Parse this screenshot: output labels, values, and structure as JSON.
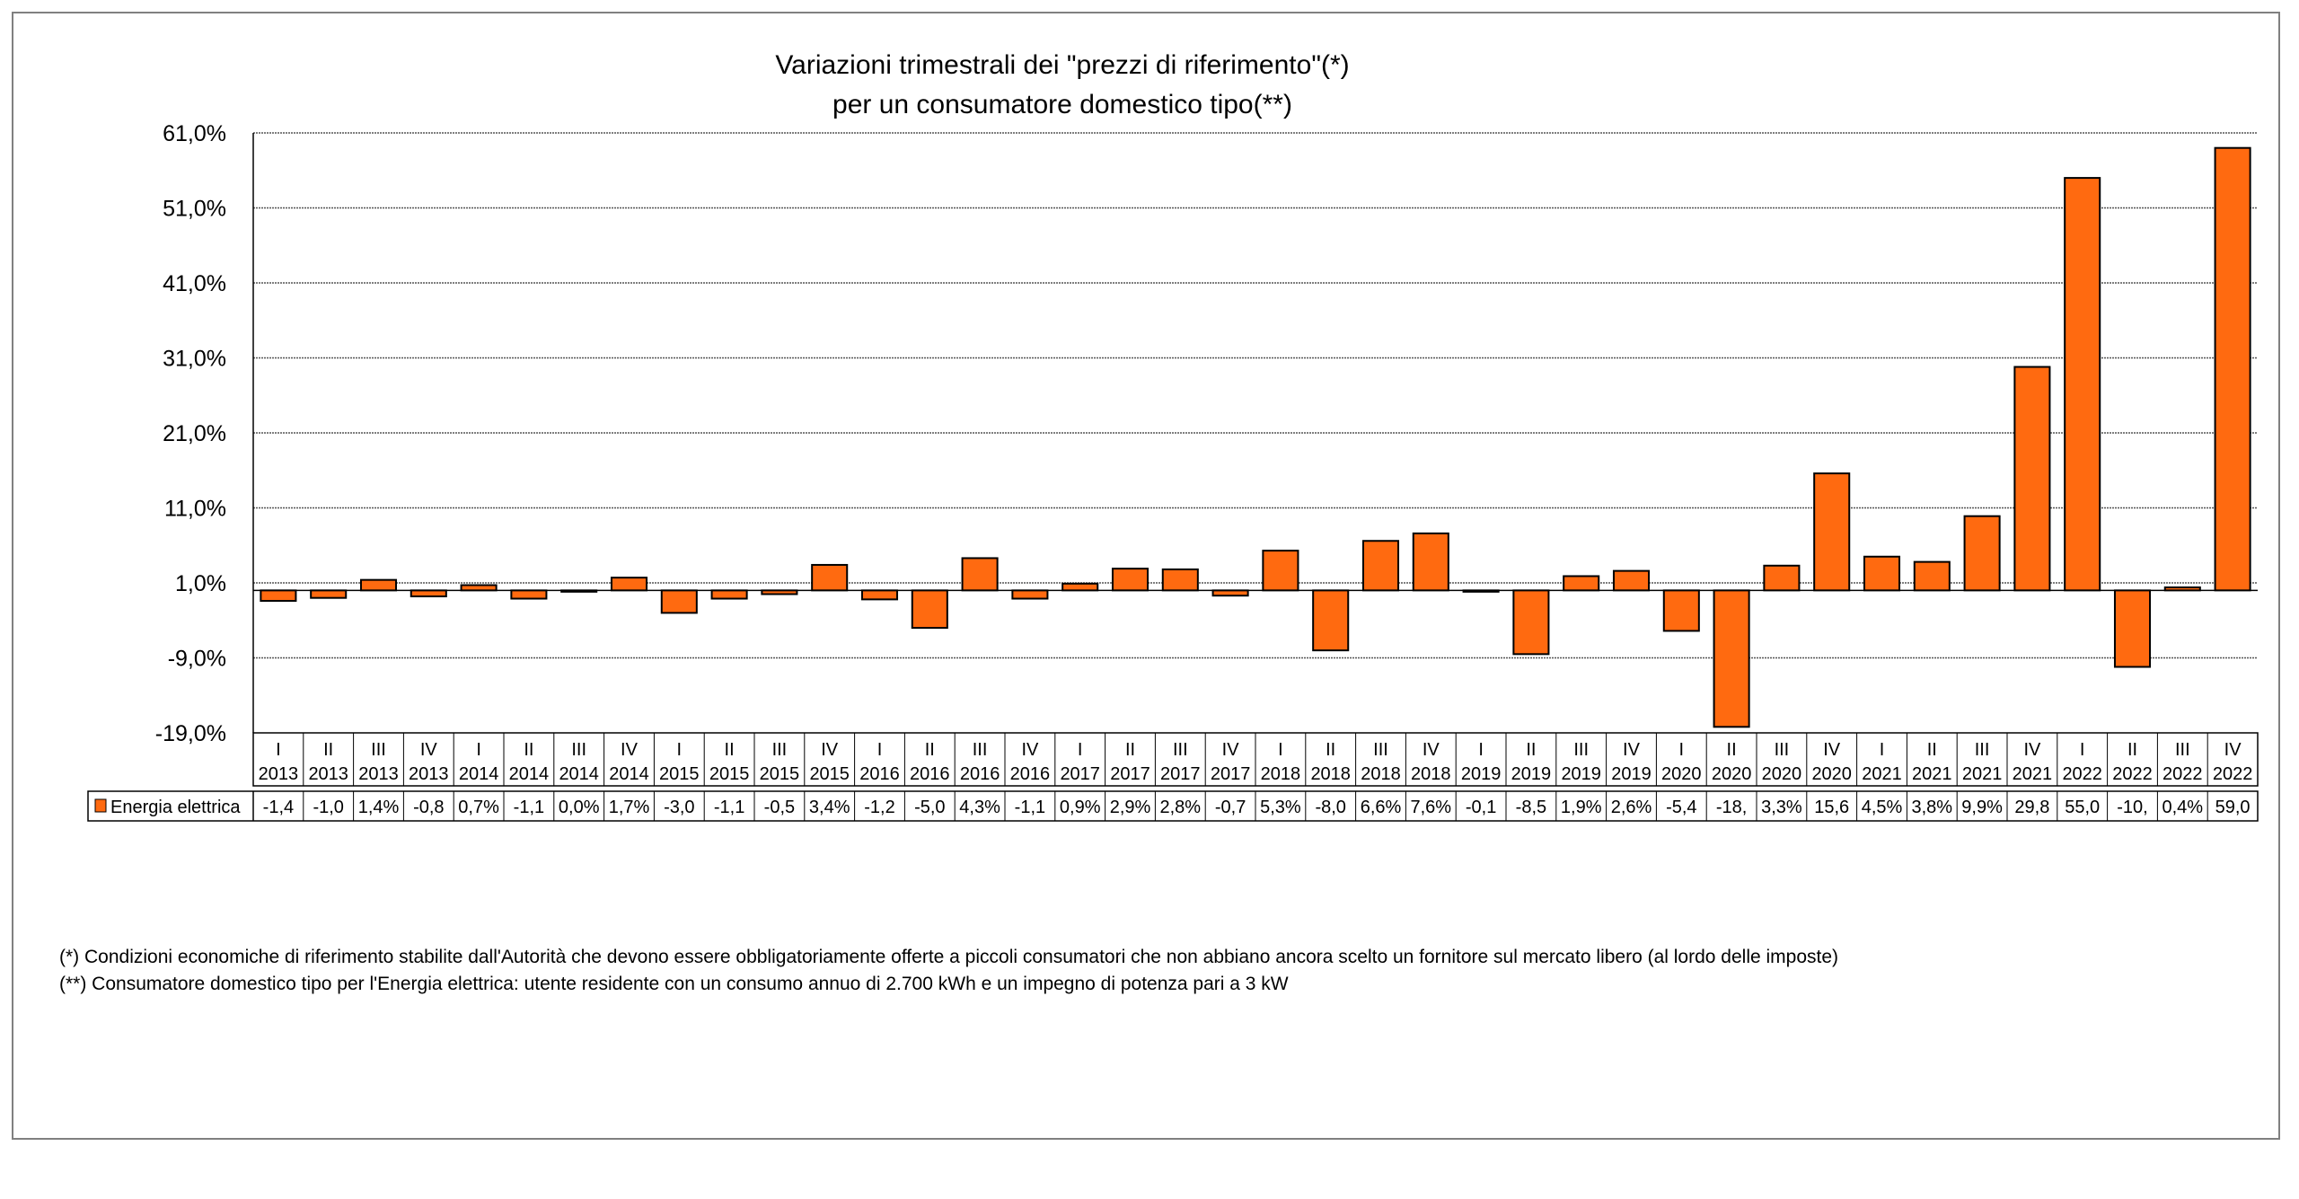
{
  "chart_data": {
    "type": "bar",
    "title_line1": "Variazioni trimestrali dei \"prezzi di riferimento\"(*)",
    "title_line2": "per un consumatore domestico tipo(**)",
    "xlabel": "",
    "ylabel": "",
    "ylim": [
      -19,
      61
    ],
    "y_ticks": [
      61,
      51,
      41,
      31,
      21,
      11,
      1,
      -9,
      -19
    ],
    "y_tick_labels": [
      "61,0%",
      "51,0%",
      "41,0%",
      "31,0%",
      "21,0%",
      "11,0%",
      "1,0%",
      "-9,0%",
      "-19,0%"
    ],
    "grid": true,
    "quarters": [
      "I",
      "II",
      "III",
      "IV",
      "I",
      "II",
      "III",
      "IV",
      "I",
      "II",
      "III",
      "IV",
      "I",
      "II",
      "III",
      "IV",
      "I",
      "II",
      "III",
      "IV",
      "I",
      "II",
      "III",
      "IV",
      "I",
      "II",
      "III",
      "IV",
      "I",
      "II",
      "III",
      "IV",
      "I",
      "II",
      "III",
      "IV",
      "I",
      "II",
      "III",
      "IV"
    ],
    "categories": [
      "I 2013",
      "II 2013",
      "III 2013",
      "IV 2013",
      "I 2014",
      "II 2014",
      "III 2014",
      "IV 2014",
      "I 2015",
      "II 2015",
      "III 2015",
      "IV 2015",
      "I 2016",
      "II 2016",
      "III 2016",
      "IV 2016",
      "I 2017",
      "II 2017",
      "III 2017",
      "IV 2017",
      "I 2018",
      "II 2018",
      "III 2018",
      "IV 2018",
      "I 2019",
      "II 2019",
      "III 2019",
      "IV 2019",
      "I 2020",
      "II 2020",
      "III 2020",
      "IV 2020",
      "I 2021",
      "II 2021",
      "III 2021",
      "IV 2021",
      "I 2022",
      "II 2022",
      "III 2022",
      "IV 2022"
    ],
    "years": [
      "2013",
      "2013",
      "2013",
      "2013",
      "2014",
      "2014",
      "2014",
      "2014",
      "2015",
      "2015",
      "2015",
      "2015",
      "2016",
      "2016",
      "2016",
      "2016",
      "2017",
      "2017",
      "2017",
      "2017",
      "2018",
      "2018",
      "2018",
      "2018",
      "2019",
      "2019",
      "2019",
      "2019",
      "2020",
      "2020",
      "2020",
      "2020",
      "2021",
      "2021",
      "2021",
      "2021",
      "2022",
      "2022",
      "2022",
      "2022"
    ],
    "series": [
      {
        "name": "Energia elettrica",
        "color": "#FF6A10",
        "values": [
          -1.4,
          -1.0,
          1.4,
          -0.8,
          0.7,
          -1.1,
          0.0,
          1.7,
          -3.0,
          -1.1,
          -0.5,
          3.4,
          -1.2,
          -5.0,
          4.3,
          -1.1,
          0.9,
          2.9,
          2.8,
          -0.7,
          5.3,
          -8.0,
          6.6,
          7.6,
          -0.1,
          -8.5,
          1.9,
          2.6,
          -5.4,
          -18.2,
          3.3,
          15.6,
          4.5,
          3.8,
          9.9,
          29.8,
          55.0,
          -10.2,
          0.4,
          59.0
        ],
        "value_labels": [
          "-1,4",
          "-1,0",
          "1,4%",
          "-0,8",
          "0,7%",
          "-1,1",
          "0,0%",
          "1,7%",
          "-3,0",
          "-1,1",
          "-0,5",
          "3,4%",
          "-1,2",
          "-5,0",
          "4,3%",
          "-1,1",
          "0,9%",
          "2,9%",
          "2,8%",
          "-0,7",
          "5,3%",
          "-8,0",
          "6,6%",
          "7,6%",
          "-0,1",
          "-8,5",
          "1,9%",
          "2,6%",
          "-5,4",
          "-18,",
          "3,3%",
          "15,6",
          "4,5%",
          "3,8%",
          "9,9%",
          "29,8",
          "55,0",
          "-10,",
          "0,4%",
          "59,0"
        ]
      }
    ],
    "legend": "data-table"
  },
  "footnotes": [
    "(*) Condizioni economiche di riferimento stabilite dall'Autorità che devono essere obbligatoriamente offerte a piccoli consumatori che non abbiano ancora scelto un fornitore sul mercato libero (al lordo delle imposte)",
    "(**) Consumatore domestico tipo per l'Energia elettrica: utente residente con un consumo annuo di 2.700 kWh e un impegno di potenza pari a 3 kW"
  ]
}
